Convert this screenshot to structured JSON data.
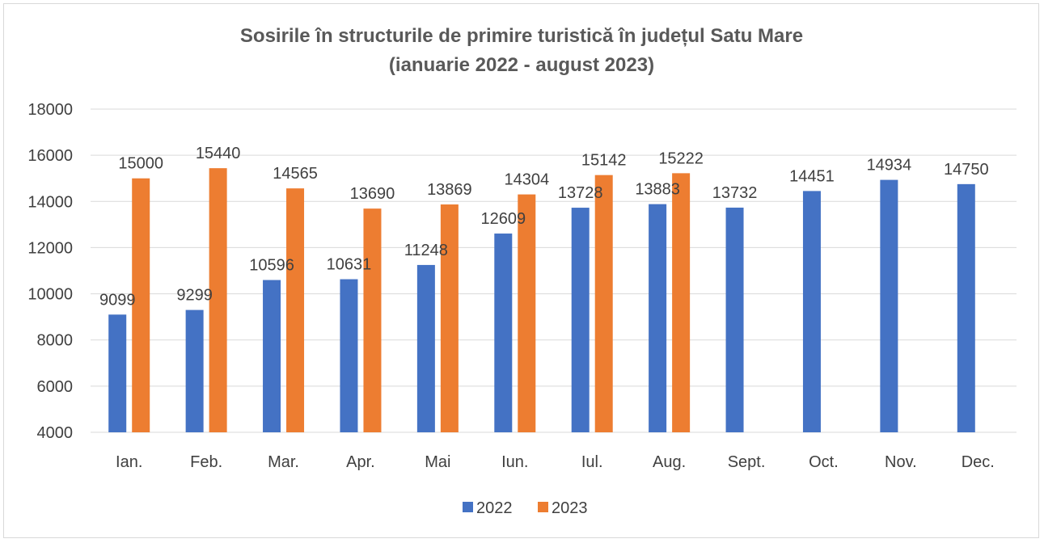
{
  "chart_data": {
    "type": "bar",
    "title": "Sosirile în structurile de primire turistică în județul Satu Mare",
    "subtitle": "(ianuarie 2022 - august 2023)",
    "categories": [
      "Ian.",
      "Feb.",
      "Mar.",
      "Apr.",
      "Mai",
      "Iun.",
      "Iul.",
      "Aug.",
      "Sept.",
      "Oct.",
      "Nov.",
      "Dec."
    ],
    "series": [
      {
        "name": "2022",
        "color": "#4472c4",
        "values": [
          9099,
          9299,
          10596,
          10631,
          11248,
          12609,
          13728,
          13883,
          13732,
          14451,
          14934,
          14750
        ]
      },
      {
        "name": "2023",
        "color": "#ed7d31",
        "values": [
          15000,
          15440,
          14565,
          13690,
          13869,
          14304,
          15142,
          15222,
          null,
          null,
          null,
          null
        ]
      }
    ],
    "ylim": [
      4000,
      18000
    ],
    "yticks": [
      4000,
      6000,
      8000,
      10000,
      12000,
      14000,
      16000,
      18000
    ],
    "grid": true,
    "legend": "bottom"
  }
}
